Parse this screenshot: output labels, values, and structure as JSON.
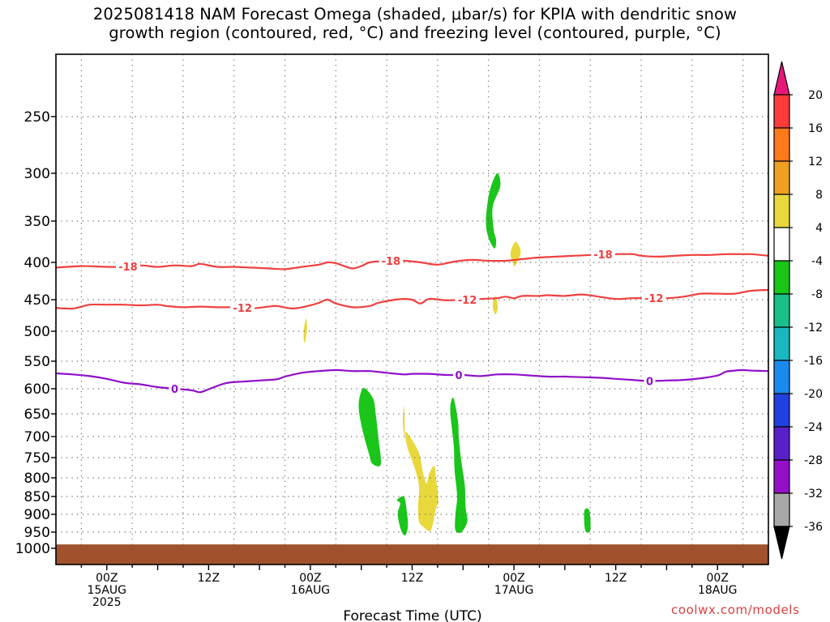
{
  "title_line1": "2025081418 NAM Forecast Omega (shaded, μbar/s) for KPIA with dendritic snow",
  "title_line2": "growth region (contoured, red, °C) and freezing level (contoured, purple, °C)",
  "credit": "coolwx.com/models",
  "chart_data": {
    "type": "contour-timeheight",
    "xlabel": "Forecast Time (UTC)",
    "x_ticks": [
      {
        "lines": [
          "00Z",
          "15AUG",
          "2025"
        ],
        "hour": 6
      },
      {
        "lines": [
          "12Z"
        ],
        "hour": 18
      },
      {
        "lines": [
          "00Z",
          "16AUG"
        ],
        "hour": 30
      },
      {
        "lines": [
          "12Z"
        ],
        "hour": 42
      },
      {
        "lines": [
          "00Z",
          "17AUG"
        ],
        "hour": 54
      },
      {
        "lines": [
          "12Z"
        ],
        "hour": 66
      },
      {
        "lines": [
          "00Z",
          "18AUG"
        ],
        "hour": 78
      }
    ],
    "x_range_hours": [
      0,
      84
    ],
    "y_axis": "pressure (hPa), reversed",
    "y_ticks": [
      250,
      300,
      350,
      400,
      450,
      500,
      550,
      600,
      650,
      700,
      750,
      800,
      850,
      900,
      950,
      1000
    ],
    "y_range": [
      200,
      1000
    ],
    "grid": "dotted",
    "colorbar": {
      "labels": [
        "20",
        "16",
        "12",
        "8",
        "4",
        "-4",
        "-8",
        "-12",
        "-16",
        "-20",
        "-24",
        "-28",
        "-32",
        "-36"
      ],
      "colors": [
        "#ff3b3b",
        "#ff7a1a",
        "#f0a020",
        "#e8d83c",
        "#ffffff",
        "#19c619",
        "#1ac08a",
        "#19b8c0",
        "#1a8aef",
        "#2040e0",
        "#5a20c8",
        "#9410c8",
        "#a8a8a8"
      ],
      "top_arrow_color": "#e8187a",
      "bottom_arrow_color": "#000000"
    },
    "contours": [
      {
        "label": "-18",
        "color": "#f04040",
        "points": [
          [
            0,
            407
          ],
          [
            3,
            405
          ],
          [
            6,
            406
          ],
          [
            8,
            406
          ],
          [
            10,
            404
          ],
          [
            12,
            406
          ],
          [
            14,
            404
          ],
          [
            16,
            405
          ],
          [
            17,
            402
          ],
          [
            19,
            406
          ],
          [
            21,
            406
          ],
          [
            23,
            407
          ],
          [
            25,
            408
          ],
          [
            27,
            409
          ],
          [
            29,
            406
          ],
          [
            31,
            403
          ],
          [
            32,
            400
          ],
          [
            33,
            401
          ],
          [
            34,
            405
          ],
          [
            35,
            408
          ],
          [
            36,
            405
          ],
          [
            37,
            400
          ],
          [
            39,
            398
          ],
          [
            41,
            398
          ],
          [
            43,
            400
          ],
          [
            45,
            403
          ],
          [
            47,
            399
          ],
          [
            49,
            397
          ],
          [
            51,
            398
          ],
          [
            53,
            398
          ],
          [
            55,
            396
          ],
          [
            57,
            394
          ],
          [
            59,
            393
          ],
          [
            61,
            392
          ],
          [
            63,
            391
          ],
          [
            65,
            390
          ],
          [
            66,
            390
          ],
          [
            68,
            390
          ],
          [
            69,
            392
          ],
          [
            71,
            393
          ],
          [
            73,
            392
          ],
          [
            75,
            391
          ],
          [
            77,
            391
          ],
          [
            79,
            390
          ],
          [
            81,
            390
          ],
          [
            82,
            390
          ],
          [
            84,
            392
          ]
        ],
        "label_hours": [
          8.5,
          39.5,
          64.5
        ]
      },
      {
        "label": "-12",
        "color": "#f04040",
        "points": [
          [
            0,
            463
          ],
          [
            2,
            464
          ],
          [
            4,
            458
          ],
          [
            6,
            458
          ],
          [
            8,
            458
          ],
          [
            10,
            459
          ],
          [
            12,
            458
          ],
          [
            13,
            460
          ],
          [
            15,
            462
          ],
          [
            17,
            461
          ],
          [
            19,
            462
          ],
          [
            21,
            462
          ],
          [
            23,
            464
          ],
          [
            25,
            461
          ],
          [
            26,
            460
          ],
          [
            28,
            464
          ],
          [
            30,
            459
          ],
          [
            31,
            455
          ],
          [
            32,
            450
          ],
          [
            33,
            456
          ],
          [
            35,
            462
          ],
          [
            37,
            460
          ],
          [
            38,
            455
          ],
          [
            40,
            450
          ],
          [
            41,
            449
          ],
          [
            42,
            450
          ],
          [
            43,
            456
          ],
          [
            44,
            449
          ],
          [
            46,
            451
          ],
          [
            48,
            450
          ],
          [
            50,
            449
          ],
          [
            52,
            448
          ],
          [
            53,
            446
          ],
          [
            54,
            448
          ],
          [
            55,
            445
          ],
          [
            57,
            445
          ],
          [
            58,
            444
          ],
          [
            60,
            445
          ],
          [
            62,
            443
          ],
          [
            64,
            446
          ],
          [
            66,
            449
          ],
          [
            68,
            448
          ],
          [
            70,
            448
          ],
          [
            72,
            448
          ],
          [
            74,
            446
          ],
          [
            76,
            442
          ],
          [
            78,
            442
          ],
          [
            80,
            442
          ],
          [
            82,
            438
          ],
          [
            84,
            437
          ]
        ],
        "label_hours": [
          22,
          48.5,
          70.5
        ]
      },
      {
        "label": "0",
        "color": "#9010c8",
        "points": [
          [
            0,
            572
          ],
          [
            2,
            574
          ],
          [
            4,
            577
          ],
          [
            6,
            582
          ],
          [
            8,
            589
          ],
          [
            10,
            592
          ],
          [
            12,
            597
          ],
          [
            14,
            600
          ],
          [
            16,
            603
          ],
          [
            17,
            607
          ],
          [
            18,
            601
          ],
          [
            20,
            590
          ],
          [
            22,
            587
          ],
          [
            24,
            585
          ],
          [
            26,
            583
          ],
          [
            27,
            578
          ],
          [
            29,
            571
          ],
          [
            31,
            568
          ],
          [
            33,
            566
          ],
          [
            35,
            568
          ],
          [
            37,
            568
          ],
          [
            39,
            571
          ],
          [
            41,
            574
          ],
          [
            42,
            573
          ],
          [
            44,
            573
          ],
          [
            46,
            575
          ],
          [
            48,
            575
          ],
          [
            50,
            577
          ],
          [
            52,
            574
          ],
          [
            54,
            574
          ],
          [
            56,
            576
          ],
          [
            58,
            578
          ],
          [
            60,
            578
          ],
          [
            62,
            579
          ],
          [
            64,
            580
          ],
          [
            66,
            582
          ],
          [
            68,
            584
          ],
          [
            70,
            586
          ],
          [
            72,
            585
          ],
          [
            74,
            584
          ],
          [
            76,
            581
          ],
          [
            78,
            576
          ],
          [
            79,
            569
          ],
          [
            80,
            567
          ],
          [
            81,
            566
          ],
          [
            82,
            567
          ],
          [
            84,
            568
          ]
        ],
        "label_hours": [
          14,
          47.5,
          70
        ]
      }
    ],
    "shaded_regions": [
      {
        "value": "-4 to -8",
        "color": "#19c619",
        "points": [
          [
            52.0,
            300
          ],
          [
            52.4,
            313
          ],
          [
            51.5,
            335
          ],
          [
            51.6,
            360
          ],
          [
            51.9,
            373
          ],
          [
            51.7,
            383
          ],
          [
            51.0,
            370
          ],
          [
            50.7,
            350
          ],
          [
            51.1,
            320
          ]
        ]
      },
      {
        "value": "4 to 8",
        "color": "#e8d83c",
        "points": [
          [
            54.2,
            375
          ],
          [
            54.8,
            388
          ],
          [
            54.1,
            405
          ],
          [
            53.8,
            398
          ],
          [
            53.6,
            388
          ]
        ]
      },
      {
        "value": "4 to 8",
        "color": "#e8d83c",
        "points": [
          [
            51.8,
            445
          ],
          [
            52.1,
            462
          ],
          [
            51.8,
            473
          ],
          [
            51.5,
            460
          ]
        ]
      },
      {
        "value": "4 to 8",
        "color": "#e8d83c",
        "points": [
          [
            29.5,
            480
          ],
          [
            29.6,
            498
          ],
          [
            29.3,
            520
          ],
          [
            29.2,
            500
          ]
        ]
      },
      {
        "value": "-4 to -8",
        "color": "#19c619",
        "points": [
          [
            36.4,
            599
          ],
          [
            37.4,
            620
          ],
          [
            37.7,
            650
          ],
          [
            38.0,
            700
          ],
          [
            38.3,
            766
          ],
          [
            37.3,
            765
          ],
          [
            36.9,
            740
          ],
          [
            36.2,
            690
          ],
          [
            35.7,
            640
          ],
          [
            35.9,
            610
          ]
        ]
      },
      {
        "value": "4 to 8",
        "color": "#e8d83c",
        "points": [
          [
            41.3,
            690
          ],
          [
            42.2,
            715
          ],
          [
            42.9,
            745
          ],
          [
            43.3,
            790
          ],
          [
            43.7,
            815
          ],
          [
            44.0,
            790
          ],
          [
            44.6,
            770
          ],
          [
            44.8,
            800
          ],
          [
            45.1,
            860
          ],
          [
            44.8,
            885
          ],
          [
            44.2,
            945
          ],
          [
            43.3,
            935
          ],
          [
            42.8,
            920
          ],
          [
            42.7,
            880
          ],
          [
            42.8,
            820
          ],
          [
            42.2,
            770
          ],
          [
            41.5,
            730
          ],
          [
            41.2,
            700
          ]
        ]
      },
      {
        "value": "-4 to -8",
        "color": "#19c619",
        "points": [
          [
            46.9,
            620
          ],
          [
            47.4,
            665
          ],
          [
            47.5,
            705
          ],
          [
            47.8,
            760
          ],
          [
            48.2,
            820
          ],
          [
            48.3,
            880
          ],
          [
            48.5,
            920
          ],
          [
            47.8,
            950
          ],
          [
            47.1,
            945
          ],
          [
            47.1,
            900
          ],
          [
            47.3,
            850
          ],
          [
            47.0,
            780
          ],
          [
            46.9,
            720
          ],
          [
            46.5,
            650
          ],
          [
            46.6,
            625
          ]
        ]
      },
      {
        "value": "-4 to -8",
        "color": "#19c619",
        "points": [
          [
            41.0,
            850
          ],
          [
            41.3,
            880
          ],
          [
            41.5,
            930
          ],
          [
            41.2,
            960
          ],
          [
            40.7,
            945
          ],
          [
            40.3,
            900
          ],
          [
            40.6,
            870
          ],
          [
            40.2,
            860
          ]
        ]
      },
      {
        "value": "-4 to -8",
        "color": "#19c619",
        "points": [
          [
            62.3,
            890
          ],
          [
            62.9,
            890
          ],
          [
            63.0,
            945
          ],
          [
            62.4,
            945
          ]
        ]
      },
      {
        "value": "4 to 8",
        "color": "#e8d83c",
        "points": [
          [
            41.0,
            635
          ],
          [
            41.1,
            660
          ],
          [
            41.1,
            700
          ],
          [
            40.9,
            670
          ]
        ]
      }
    ],
    "ground": {
      "color": "#a0522d",
      "top_pressure": 988
    }
  }
}
